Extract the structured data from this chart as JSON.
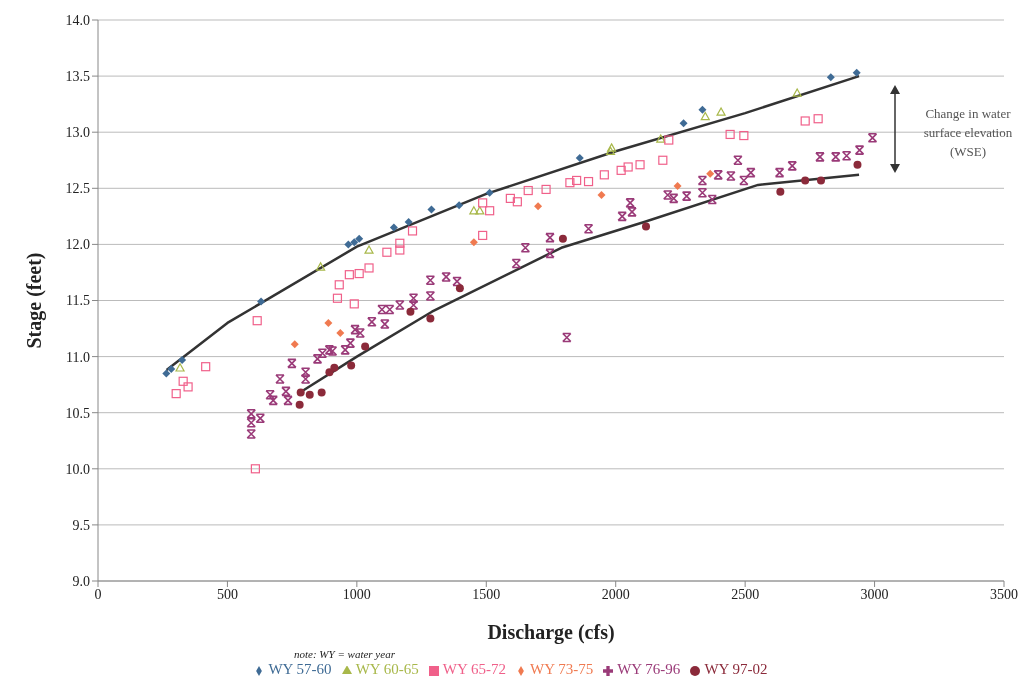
{
  "chart_data": {
    "type": "scatter",
    "xlabel": "Discharge (cfs)",
    "ylabel": "Stage (feet)",
    "xlim": [
      0,
      3500
    ],
    "xticks": [
      0,
      500,
      1000,
      1500,
      2000,
      2500,
      3000,
      3500
    ],
    "ylim": [
      9,
      14
    ],
    "yticks": [
      {
        "value": 9,
        "label": "9.0"
      },
      {
        "value": 9.5,
        "label": "9.5"
      },
      {
        "value": 10,
        "label": "10.0"
      },
      {
        "value": 10.5,
        "label": "10.5"
      },
      {
        "value": 11,
        "label": "11.0"
      },
      {
        "value": 11.5,
        "label": "11.5"
      },
      {
        "value": 12,
        "label": "12.0"
      },
      {
        "value": 12.5,
        "label": "12.5"
      },
      {
        "value": 13,
        "label": "13.0"
      },
      {
        "value": 13.5,
        "label": "13.5"
      },
      {
        "value": 14,
        "label": "14.0"
      }
    ],
    "grid": "y",
    "legend": "bottom",
    "annotations": [
      "Change in water surface elevation (WSE)",
      "note: WY = water year"
    ],
    "series": [
      {
        "name": "WY 57-60",
        "color": "#3f6b95",
        "marker": "diamond",
        "x": [
          264,
          283,
          325,
          630,
          967,
          990,
          1009,
          1143,
          1200,
          1288,
          1395,
          1513,
          1861,
          2262,
          2335,
          2831,
          2931
        ],
        "values": [
          10.85,
          10.89,
          10.97,
          11.49,
          12.0,
          12.02,
          12.05,
          12.15,
          12.2,
          12.31,
          12.35,
          12.46,
          12.77,
          13.08,
          13.2,
          13.49,
          13.53
        ]
      },
      {
        "name": "WY 60-65",
        "color": "#a8b84a",
        "marker": "triangle",
        "x": [
          317,
          860,
          1047,
          1452,
          1475,
          1980,
          1984,
          2174,
          2346,
          2407,
          2701
        ],
        "values": [
          10.9,
          11.8,
          11.95,
          12.3,
          12.3,
          12.83,
          12.86,
          12.94,
          13.14,
          13.18,
          13.35
        ]
      },
      {
        "name": "WY 65-72",
        "color": "#f0608a",
        "marker": "square",
        "x": [
          608,
          615,
          302,
          329,
          348,
          416,
          925,
          932,
          971,
          1009,
          1047,
          990,
          1116,
          1166,
          1166,
          1215,
          1486,
          1513,
          1486,
          1593,
          1620,
          1662,
          1731,
          1823,
          1849,
          1895,
          1956,
          2021,
          2048,
          2094,
          2182,
          2205,
          2442,
          2495,
          2732,
          2782
        ],
        "values": [
          10.0,
          11.32,
          10.67,
          10.78,
          10.73,
          10.91,
          11.52,
          11.64,
          11.73,
          11.74,
          11.79,
          11.47,
          11.93,
          12.01,
          11.95,
          12.12,
          12.37,
          12.3,
          12.08,
          12.41,
          12.38,
          12.48,
          12.49,
          12.55,
          12.57,
          12.56,
          12.62,
          12.66,
          12.69,
          12.71,
          12.75,
          12.93,
          12.98,
          12.97,
          13.1,
          13.12
        ]
      },
      {
        "name": "WY 73-75",
        "color": "#f07a50",
        "marker": "diamond",
        "x": [
          760,
          890,
          936,
          1452,
          1700,
          1945,
          2239,
          2365
        ],
        "values": [
          11.11,
          11.3,
          11.21,
          12.02,
          12.34,
          12.44,
          12.52,
          12.63
        ]
      },
      {
        "name": "WY 76-96",
        "color": "#9a3a78",
        "marker": "cross",
        "x": [
          592,
          592,
          592,
          627,
          665,
          677,
          703,
          726,
          734,
          749,
          802,
          802,
          848,
          867,
          894,
          906,
          955,
          975,
          993,
          1013,
          1058,
          1097,
          1108,
          1127,
          1166,
          1219,
          1219,
          1284,
          1284,
          1345,
          1387,
          1616,
          1651,
          1746,
          1746,
          1811,
          1895,
          2025,
          2056,
          2063,
          2201,
          2224,
          2274,
          2335,
          2373,
          2335,
          2396,
          2445,
          2495,
          2522,
          2472,
          2633,
          2682,
          2789,
          2850,
          2892,
          2942,
          2992
        ],
        "values": [
          10.49,
          10.41,
          10.31,
          10.45,
          10.66,
          10.61,
          10.8,
          10.69,
          10.61,
          10.94,
          10.86,
          10.8,
          10.98,
          11.03,
          11.06,
          11.05,
          11.06,
          11.12,
          11.24,
          11.21,
          11.31,
          11.42,
          11.29,
          11.42,
          11.46,
          11.52,
          11.46,
          11.68,
          11.54,
          11.71,
          11.67,
          11.83,
          11.97,
          12.06,
          11.92,
          11.17,
          12.14,
          12.25,
          12.37,
          12.29,
          12.44,
          12.41,
          12.43,
          12.46,
          12.4,
          12.57,
          12.62,
          12.61,
          12.57,
          12.64,
          12.75,
          12.64,
          12.7,
          12.78,
          12.78,
          12.79,
          12.84,
          12.95
        ]
      },
      {
        "name": "WY 97-02",
        "color": "#8b2a3a",
        "marker": "circle",
        "x": [
          779,
          783,
          818,
          864,
          894,
          913,
          978,
          1032,
          1207,
          1284,
          1398,
          1796,
          2117,
          2636,
          2732,
          2793,
          2934
        ],
        "values": [
          10.57,
          10.68,
          10.66,
          10.68,
          10.86,
          10.9,
          10.92,
          11.09,
          11.4,
          11.34,
          11.61,
          12.05,
          12.16,
          12.47,
          12.57,
          12.57,
          12.71
        ]
      },
      {
        "type": "line",
        "color": "#333333",
        "marker": "none",
        "x": [
          265,
          500,
          1000,
          1500,
          2000,
          2500,
          2940
        ],
        "values": [
          10.88,
          11.3,
          11.98,
          12.45,
          12.83,
          13.17,
          13.5
        ]
      },
      {
        "type": "line",
        "color": "#333333",
        "marker": "none",
        "x": [
          780,
          1000,
          1290,
          1790,
          2110,
          2550,
          2940
        ],
        "values": [
          10.68,
          11.0,
          11.4,
          11.97,
          12.2,
          12.53,
          12.62
        ]
      }
    ]
  }
}
